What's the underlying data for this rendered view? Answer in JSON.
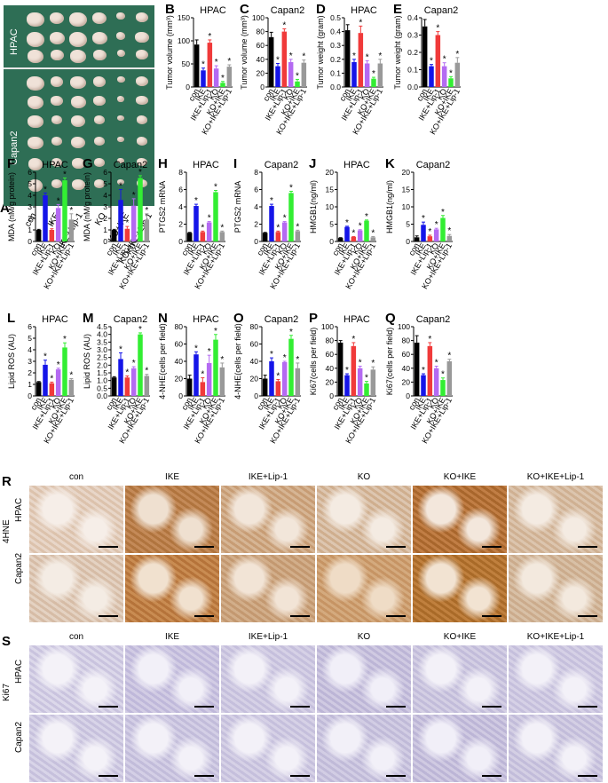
{
  "panel_A": {
    "label": "A",
    "rows": [
      "HPAC",
      "Capan2"
    ],
    "groups": [
      "con",
      "IKE",
      "IKE+Lip-1",
      "KO",
      "KO+IKE",
      "KO+IKE+Lip-1"
    ]
  },
  "groups": [
    "con",
    "IKE",
    "IKE+Lip-1",
    "KO",
    "KO+IKE",
    "KO+IKE+Lip-1"
  ],
  "colors": [
    "#000000",
    "#1515e8",
    "#f03a3a",
    "#b46af2",
    "#33ee33",
    "#999999"
  ],
  "chart_data": [
    {
      "id": "B",
      "type": "bar",
      "title": "HPAC",
      "ylabel": "Tumor volume (mm³)",
      "ylim": [
        0,
        150
      ],
      "yticks": [
        0,
        50,
        100,
        150
      ],
      "values": [
        92,
        36,
        96,
        40,
        9,
        44
      ],
      "errors": [
        10,
        5,
        6,
        6,
        3,
        4
      ],
      "stars": [
        false,
        true,
        true,
        true,
        true,
        true
      ]
    },
    {
      "id": "C",
      "type": "bar",
      "title": "Capan2",
      "ylabel": "Tumor volume (mm³)",
      "ylim": [
        0,
        100
      ],
      "yticks": [
        0,
        20,
        40,
        60,
        80,
        100
      ],
      "values": [
        72,
        30,
        80,
        36,
        8,
        35
      ],
      "errors": [
        7,
        4,
        4,
        4,
        3,
        4
      ],
      "stars": [
        false,
        true,
        true,
        true,
        true,
        true
      ]
    },
    {
      "id": "D",
      "type": "bar",
      "title": "HPAC",
      "ylabel": "Tumor weight (gram)",
      "ylim": [
        0,
        0.5
      ],
      "yticks": [
        0.0,
        0.1,
        0.2,
        0.3,
        0.4,
        0.5
      ],
      "values": [
        0.41,
        0.18,
        0.39,
        0.17,
        0.06,
        0.17
      ],
      "errors": [
        0.04,
        0.02,
        0.05,
        0.02,
        0.01,
        0.03
      ],
      "stars": [
        false,
        true,
        true,
        true,
        true,
        true
      ]
    },
    {
      "id": "E",
      "type": "bar",
      "title": "Capan2",
      "ylabel": "Tumor weight (gram)",
      "ylim": [
        0,
        0.4
      ],
      "yticks": [
        0.0,
        0.1,
        0.2,
        0.3,
        0.4
      ],
      "values": [
        0.35,
        0.12,
        0.3,
        0.12,
        0.05,
        0.14
      ],
      "errors": [
        0.04,
        0.01,
        0.02,
        0.02,
        0.01,
        0.03
      ],
      "stars": [
        false,
        true,
        true,
        true,
        true,
        true
      ]
    },
    {
      "id": "F",
      "type": "bar",
      "title": "HPAC",
      "ylabel": "MDA (nM/g protein)",
      "ylim": [
        0,
        6
      ],
      "yticks": [
        0,
        1,
        2,
        3,
        4,
        5,
        6
      ],
      "values": [
        1.0,
        4.0,
        1.0,
        2.9,
        5.3,
        1.9
      ],
      "errors": [
        0.05,
        0.2,
        0.1,
        0.3,
        0.2,
        0.5
      ],
      "stars": [
        false,
        true,
        true,
        true,
        true,
        true
      ]
    },
    {
      "id": "G",
      "type": "bar",
      "title": "Capan2",
      "ylabel": "MDA (nM/g protein)",
      "ylim": [
        0,
        6
      ],
      "yticks": [
        0,
        1,
        2,
        3,
        4,
        5,
        6
      ],
      "values": [
        1.0,
        3.6,
        1.1,
        3.1,
        5.5,
        1.9
      ],
      "errors": [
        0.05,
        0.9,
        0.2,
        0.6,
        0.2,
        0.5
      ],
      "stars": [
        false,
        true,
        true,
        true,
        true,
        true
      ]
    },
    {
      "id": "H",
      "type": "bar",
      "title": "HPAC",
      "ylabel": "PTGS2 mRNA",
      "ylim": [
        0,
        8
      ],
      "yticks": [
        0,
        2,
        4,
        6,
        8
      ],
      "values": [
        1.0,
        4.1,
        1.1,
        2.2,
        5.7,
        1.1
      ],
      "errors": [
        0.05,
        0.2,
        0.1,
        0.1,
        0.2,
        0.1
      ],
      "stars": [
        false,
        true,
        true,
        true,
        true,
        true
      ]
    },
    {
      "id": "I",
      "type": "bar",
      "title": "Capan2",
      "ylabel": "PTGS2 mRNA",
      "ylim": [
        0,
        8
      ],
      "yticks": [
        0,
        2,
        4,
        6,
        8
      ],
      "values": [
        1.0,
        4.1,
        1.1,
        2.2,
        5.6,
        1.2
      ],
      "errors": [
        0.05,
        0.2,
        0.1,
        0.1,
        0.2,
        0.1
      ],
      "stars": [
        false,
        true,
        true,
        true,
        true,
        true
      ]
    },
    {
      "id": "J",
      "type": "bar",
      "title": "HPAC",
      "ylabel": "HMGB1(ng/ml)",
      "ylim": [
        0,
        20
      ],
      "yticks": [
        0,
        5,
        10,
        15,
        20
      ],
      "values": [
        1.0,
        4.2,
        1.3,
        3.2,
        6.0,
        1.2
      ],
      "errors": [
        0.1,
        0.2,
        0.1,
        0.2,
        0.2,
        0.2
      ],
      "stars": [
        false,
        true,
        true,
        true,
        true,
        true
      ]
    },
    {
      "id": "K",
      "type": "bar",
      "title": "Capan2",
      "ylabel": "HMGB1(ng/ml)",
      "ylim": [
        0,
        20
      ],
      "yticks": [
        0,
        5,
        10,
        15,
        20
      ],
      "values": [
        1.2,
        4.8,
        1.5,
        3.5,
        6.8,
        1.6
      ],
      "errors": [
        0.4,
        0.8,
        0.3,
        0.3,
        0.7,
        0.4
      ],
      "stars": [
        false,
        true,
        true,
        true,
        true,
        true
      ]
    },
    {
      "id": "L",
      "type": "bar",
      "title": "HPAC",
      "ylabel": "Lipid ROS (AU)",
      "ylim": [
        0,
        6
      ],
      "yticks": [
        0,
        1,
        2,
        3,
        4,
        5,
        6
      ],
      "values": [
        1.2,
        2.7,
        1.1,
        2.3,
        4.2,
        1.4
      ],
      "errors": [
        0.05,
        0.4,
        0.1,
        0.1,
        0.4,
        0.1
      ],
      "stars": [
        false,
        true,
        true,
        true,
        true,
        true
      ]
    },
    {
      "id": "M",
      "type": "bar",
      "title": "Capan2",
      "ylabel": "Lipid ROS (AU)",
      "ylim": [
        0,
        4.5
      ],
      "yticks": [
        0.0,
        0.5,
        1.0,
        1.5,
        2.0,
        2.5,
        3.0,
        3.5,
        4.0,
        4.5
      ],
      "values": [
        1.2,
        2.4,
        1.2,
        1.8,
        4.0,
        1.3
      ],
      "errors": [
        0.05,
        0.4,
        0.1,
        0.1,
        0.1,
        0.1
      ],
      "stars": [
        false,
        true,
        true,
        true,
        true,
        true
      ]
    },
    {
      "id": "N",
      "type": "bar",
      "title": "HPAC",
      "ylabel": "4-NHE(cells per field)",
      "ylim": [
        0,
        80
      ],
      "yticks": [
        0,
        20,
        40,
        60,
        80
      ],
      "values": [
        20,
        48,
        16,
        38,
        65,
        33
      ],
      "errors": [
        4,
        3,
        5,
        9,
        6,
        5
      ],
      "stars": [
        false,
        true,
        true,
        true,
        true,
        true
      ]
    },
    {
      "id": "O",
      "type": "bar",
      "title": "Capan2",
      "ylabel": "4-NHE(cells per field)",
      "ylim": [
        0,
        80
      ],
      "yticks": [
        0,
        20,
        40,
        60,
        80
      ],
      "values": [
        20,
        40,
        17,
        39,
        66,
        32
      ],
      "errors": [
        4,
        4,
        2,
        1,
        4,
        6
      ],
      "stars": [
        false,
        true,
        true,
        true,
        true,
        true
      ]
    },
    {
      "id": "P",
      "type": "bar",
      "title": "HPAC",
      "ylabel": "Ki67(cells per field)",
      "ylim": [
        0,
        100
      ],
      "yticks": [
        0,
        20,
        40,
        60,
        80,
        100
      ],
      "values": [
        77,
        30,
        72,
        40,
        18,
        38
      ],
      "errors": [
        3,
        2,
        5,
        3,
        3,
        4
      ],
      "stars": [
        false,
        true,
        true,
        true,
        true,
        true
      ]
    },
    {
      "id": "Q",
      "type": "bar",
      "title": "Capan2",
      "ylabel": "Ki67(cells per field)",
      "ylim": [
        0,
        100
      ],
      "yticks": [
        0,
        20,
        40,
        60,
        80,
        100
      ],
      "values": [
        77,
        30,
        72,
        40,
        23,
        50
      ],
      "errors": [
        10,
        2,
        5,
        3,
        3,
        3
      ],
      "stars": [
        false,
        true,
        true,
        true,
        true,
        true
      ]
    }
  ],
  "panel_R": {
    "label": "R",
    "stain": "4HNE",
    "rows": [
      "HPAC",
      "Capan2"
    ],
    "columns": [
      "con",
      "IKE",
      "IKE+Lip-1",
      "KO",
      "KO+IKE",
      "KO+IKE+Lip-1"
    ]
  },
  "panel_S": {
    "label": "S",
    "stain": "Ki67",
    "rows": [
      "HPAC",
      "Capan2"
    ],
    "columns": [
      "con",
      "IKE",
      "IKE+Lip-1",
      "KO",
      "KO+IKE",
      "KO+IKE+Lip-1"
    ]
  }
}
